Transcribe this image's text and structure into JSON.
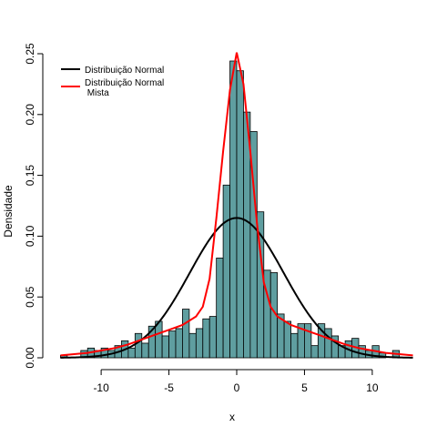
{
  "chart_data": {
    "type": "bar",
    "xlabel": "x",
    "ylabel": "Densidade",
    "xlim": [
      -13.5,
      13.5
    ],
    "ylim": [
      0,
      0.25
    ],
    "x_ticks": [
      -10,
      -5,
      0,
      5,
      10
    ],
    "x_tick_labels": [
      "-10",
      "-5",
      "0",
      "5",
      "10"
    ],
    "y_ticks": [
      0,
      0.05,
      0.1,
      0.15,
      0.2,
      0.25
    ],
    "y_tick_labels": [
      "0.00",
      "0.05",
      "0.10",
      "0.15",
      "0.20",
      "0.25"
    ],
    "histogram": {
      "bin_width": 0.5,
      "color": "#5f9ea0",
      "bins": [
        {
          "x0": -13.0,
          "density": 0.002
        },
        {
          "x0": -11.5,
          "density": 0.006
        },
        {
          "x0": -11.0,
          "density": 0.008
        },
        {
          "x0": -10.5,
          "density": 0.006
        },
        {
          "x0": -10.0,
          "density": 0.008
        },
        {
          "x0": -9.5,
          "density": 0.006
        },
        {
          "x0": -9.0,
          "density": 0.01
        },
        {
          "x0": -8.5,
          "density": 0.014
        },
        {
          "x0": -8.0,
          "density": 0.008
        },
        {
          "x0": -7.5,
          "density": 0.02
        },
        {
          "x0": -7.0,
          "density": 0.012
        },
        {
          "x0": -6.5,
          "density": 0.026
        },
        {
          "x0": -6.0,
          "density": 0.03
        },
        {
          "x0": -5.5,
          "density": 0.018
        },
        {
          "x0": -5.0,
          "density": 0.022
        },
        {
          "x0": -4.5,
          "density": 0.024
        },
        {
          "x0": -4.0,
          "density": 0.04
        },
        {
          "x0": -3.5,
          "density": 0.02
        },
        {
          "x0": -3.0,
          "density": 0.024
        },
        {
          "x0": -2.5,
          "density": 0.032
        },
        {
          "x0": -2.0,
          "density": 0.034
        },
        {
          "x0": -1.5,
          "density": 0.082
        },
        {
          "x0": -1.0,
          "density": 0.142
        },
        {
          "x0": -0.5,
          "density": 0.244
        },
        {
          "x0": 0.0,
          "density": 0.236
        },
        {
          "x0": 0.5,
          "density": 0.202
        },
        {
          "x0": 1.0,
          "density": 0.186
        },
        {
          "x0": 1.5,
          "density": 0.12
        },
        {
          "x0": 2.0,
          "density": 0.072
        },
        {
          "x0": 2.5,
          "density": 0.07
        },
        {
          "x0": 3.0,
          "density": 0.036
        },
        {
          "x0": 3.5,
          "density": 0.03
        },
        {
          "x0": 4.0,
          "density": 0.02
        },
        {
          "x0": 4.5,
          "density": 0.028
        },
        {
          "x0": 5.0,
          "density": 0.028
        },
        {
          "x0": 5.5,
          "density": 0.01
        },
        {
          "x0": 6.0,
          "density": 0.028
        },
        {
          "x0": 6.5,
          "density": 0.024
        },
        {
          "x0": 7.0,
          "density": 0.018
        },
        {
          "x0": 7.5,
          "density": 0.01
        },
        {
          "x0": 8.0,
          "density": 0.014
        },
        {
          "x0": 8.5,
          "density": 0.016
        },
        {
          "x0": 9.0,
          "density": 0.01
        },
        {
          "x0": 9.5,
          "density": 0.006
        },
        {
          "x0": 10.0,
          "density": 0.01
        },
        {
          "x0": 10.5,
          "density": 0.004
        },
        {
          "x0": 11.5,
          "density": 0.006
        }
      ]
    },
    "series": [
      {
        "name": "Distribuição Normal",
        "color": "#000000",
        "kind": "normal_curve",
        "mean": 0,
        "sd": 3.47
      },
      {
        "name": "Distribuição Normal\n Mista",
        "color": "#ff0000",
        "points": [
          [
            -13.0,
            0.002
          ],
          [
            -12.0,
            0.003
          ],
          [
            -11.0,
            0.004
          ],
          [
            -10.0,
            0.006
          ],
          [
            -9.0,
            0.008
          ],
          [
            -8.0,
            0.011
          ],
          [
            -7.0,
            0.015
          ],
          [
            -6.0,
            0.019
          ],
          [
            -5.0,
            0.023
          ],
          [
            -4.0,
            0.027
          ],
          [
            -3.0,
            0.034
          ],
          [
            -2.5,
            0.042
          ],
          [
            -2.0,
            0.065
          ],
          [
            -1.5,
            0.115
          ],
          [
            -1.0,
            0.17
          ],
          [
            -0.5,
            0.22
          ],
          [
            0.0,
            0.251
          ],
          [
            0.5,
            0.225
          ],
          [
            1.0,
            0.17
          ],
          [
            1.5,
            0.11
          ],
          [
            2.0,
            0.062
          ],
          [
            2.5,
            0.042
          ],
          [
            3.0,
            0.034
          ],
          [
            4.0,
            0.027
          ],
          [
            5.0,
            0.023
          ],
          [
            6.0,
            0.019
          ],
          [
            7.0,
            0.015
          ],
          [
            8.0,
            0.011
          ],
          [
            9.0,
            0.008
          ],
          [
            10.0,
            0.006
          ],
          [
            11.0,
            0.004
          ],
          [
            12.0,
            0.003
          ],
          [
            13.0,
            0.002
          ]
        ]
      }
    ],
    "legend": {
      "position": "top-left",
      "entries": [
        {
          "label": "Distribuição Normal",
          "line2": "",
          "color": "#000000"
        },
        {
          "label": "Distribuição Normal",
          "line2": " Mista",
          "color": "#ff0000"
        }
      ]
    }
  }
}
